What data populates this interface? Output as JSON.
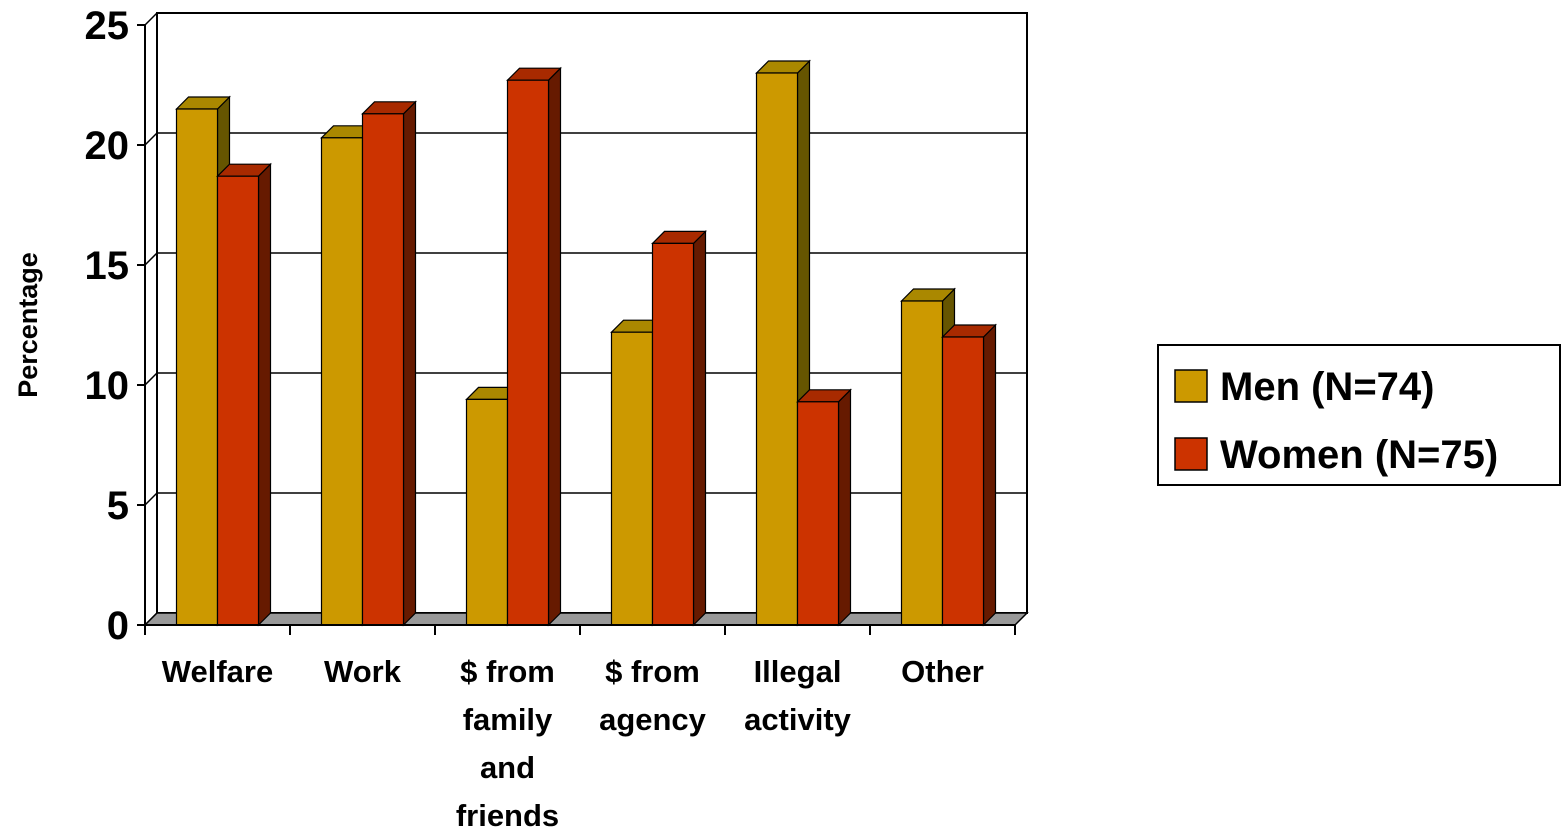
{
  "chart_data": {
    "type": "bar",
    "title": "",
    "xlabel": "",
    "ylabel": "Percentage",
    "ylim": [
      0,
      25
    ],
    "yticks": [
      "0",
      "5",
      "10",
      "15",
      "20",
      "25"
    ],
    "categories": [
      [
        "Welfare"
      ],
      [
        "Work"
      ],
      [
        "$ from",
        "family",
        "and",
        "friends"
      ],
      [
        "$ from",
        "agency"
      ],
      [
        "Illegal",
        "activity"
      ],
      [
        "Other"
      ]
    ],
    "series": [
      {
        "name": "Men (N=74)",
        "values": [
          21.5,
          20.3,
          9.4,
          12.2,
          23.0,
          13.5
        ],
        "color": "#cc9900",
        "side_color": "#665500",
        "top_color": "#aa8800"
      },
      {
        "name": "Women (N=75)",
        "values": [
          18.7,
          21.3,
          22.7,
          15.9,
          9.3,
          12.0
        ],
        "color": "#cc3300",
        "side_color": "#661a00",
        "top_color": "#a82a00"
      }
    ],
    "grid": true,
    "legend_position": "right",
    "floor_color": "#999999"
  }
}
